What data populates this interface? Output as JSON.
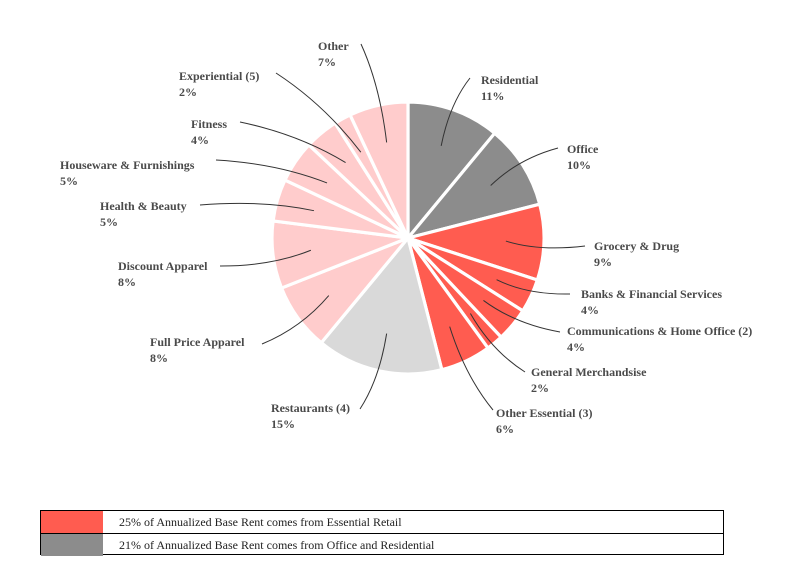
{
  "chart_data": {
    "type": "pie",
    "title": "",
    "slices": [
      {
        "name": "Residential",
        "value": 11,
        "label": "11%",
        "color": "#8c8c8c"
      },
      {
        "name": "Office",
        "value": 10,
        "label": "10%",
        "color": "#8c8c8c"
      },
      {
        "name": "Grocery & Drug",
        "value": 9,
        "label": "9%",
        "color": "#ff5c50"
      },
      {
        "name": "Banks & Financial Services",
        "value": 4,
        "label": "4%",
        "color": "#ff5c50"
      },
      {
        "name": "Communications & Home Office (2)",
        "value": 4,
        "label": "4%",
        "color": "#ff5c50"
      },
      {
        "name": "General Merchandsise",
        "value": 2,
        "label": "2%",
        "color": "#ff5c50"
      },
      {
        "name": "Other Essential (3)",
        "value": 6,
        "label": "6%",
        "color": "#ff5c50"
      },
      {
        "name": "Restaurants (4)",
        "value": 15,
        "label": "15%",
        "color": "#d9d9d9"
      },
      {
        "name": "Full Price Apparel",
        "value": 8,
        "label": "8%",
        "color": "#ffcccc"
      },
      {
        "name": "Discount Apparel",
        "value": 8,
        "label": "8%",
        "color": "#ffcccc"
      },
      {
        "name": "Health & Beauty",
        "value": 5,
        "label": "5%",
        "color": "#ffcccc"
      },
      {
        "name": "Houseware & Furnishings",
        "value": 5,
        "label": "5%",
        "color": "#ffcccc"
      },
      {
        "name": "Fitness",
        "value": 4,
        "label": "4%",
        "color": "#ffcccc"
      },
      {
        "name": "Experiential (5)",
        "value": 2,
        "label": "2%",
        "color": "#ffcccc"
      },
      {
        "name": "Other",
        "value": 7,
        "label": "7%",
        "color": "#ffcccc"
      }
    ]
  },
  "legend": [
    {
      "text": "25% of Annualized Base Rent comes from Essential Retail",
      "color": "#ff5c50"
    },
    {
      "text": "21% of Annualized Base Rent comes from Office and Residential",
      "color": "#8c8c8c"
    }
  ]
}
